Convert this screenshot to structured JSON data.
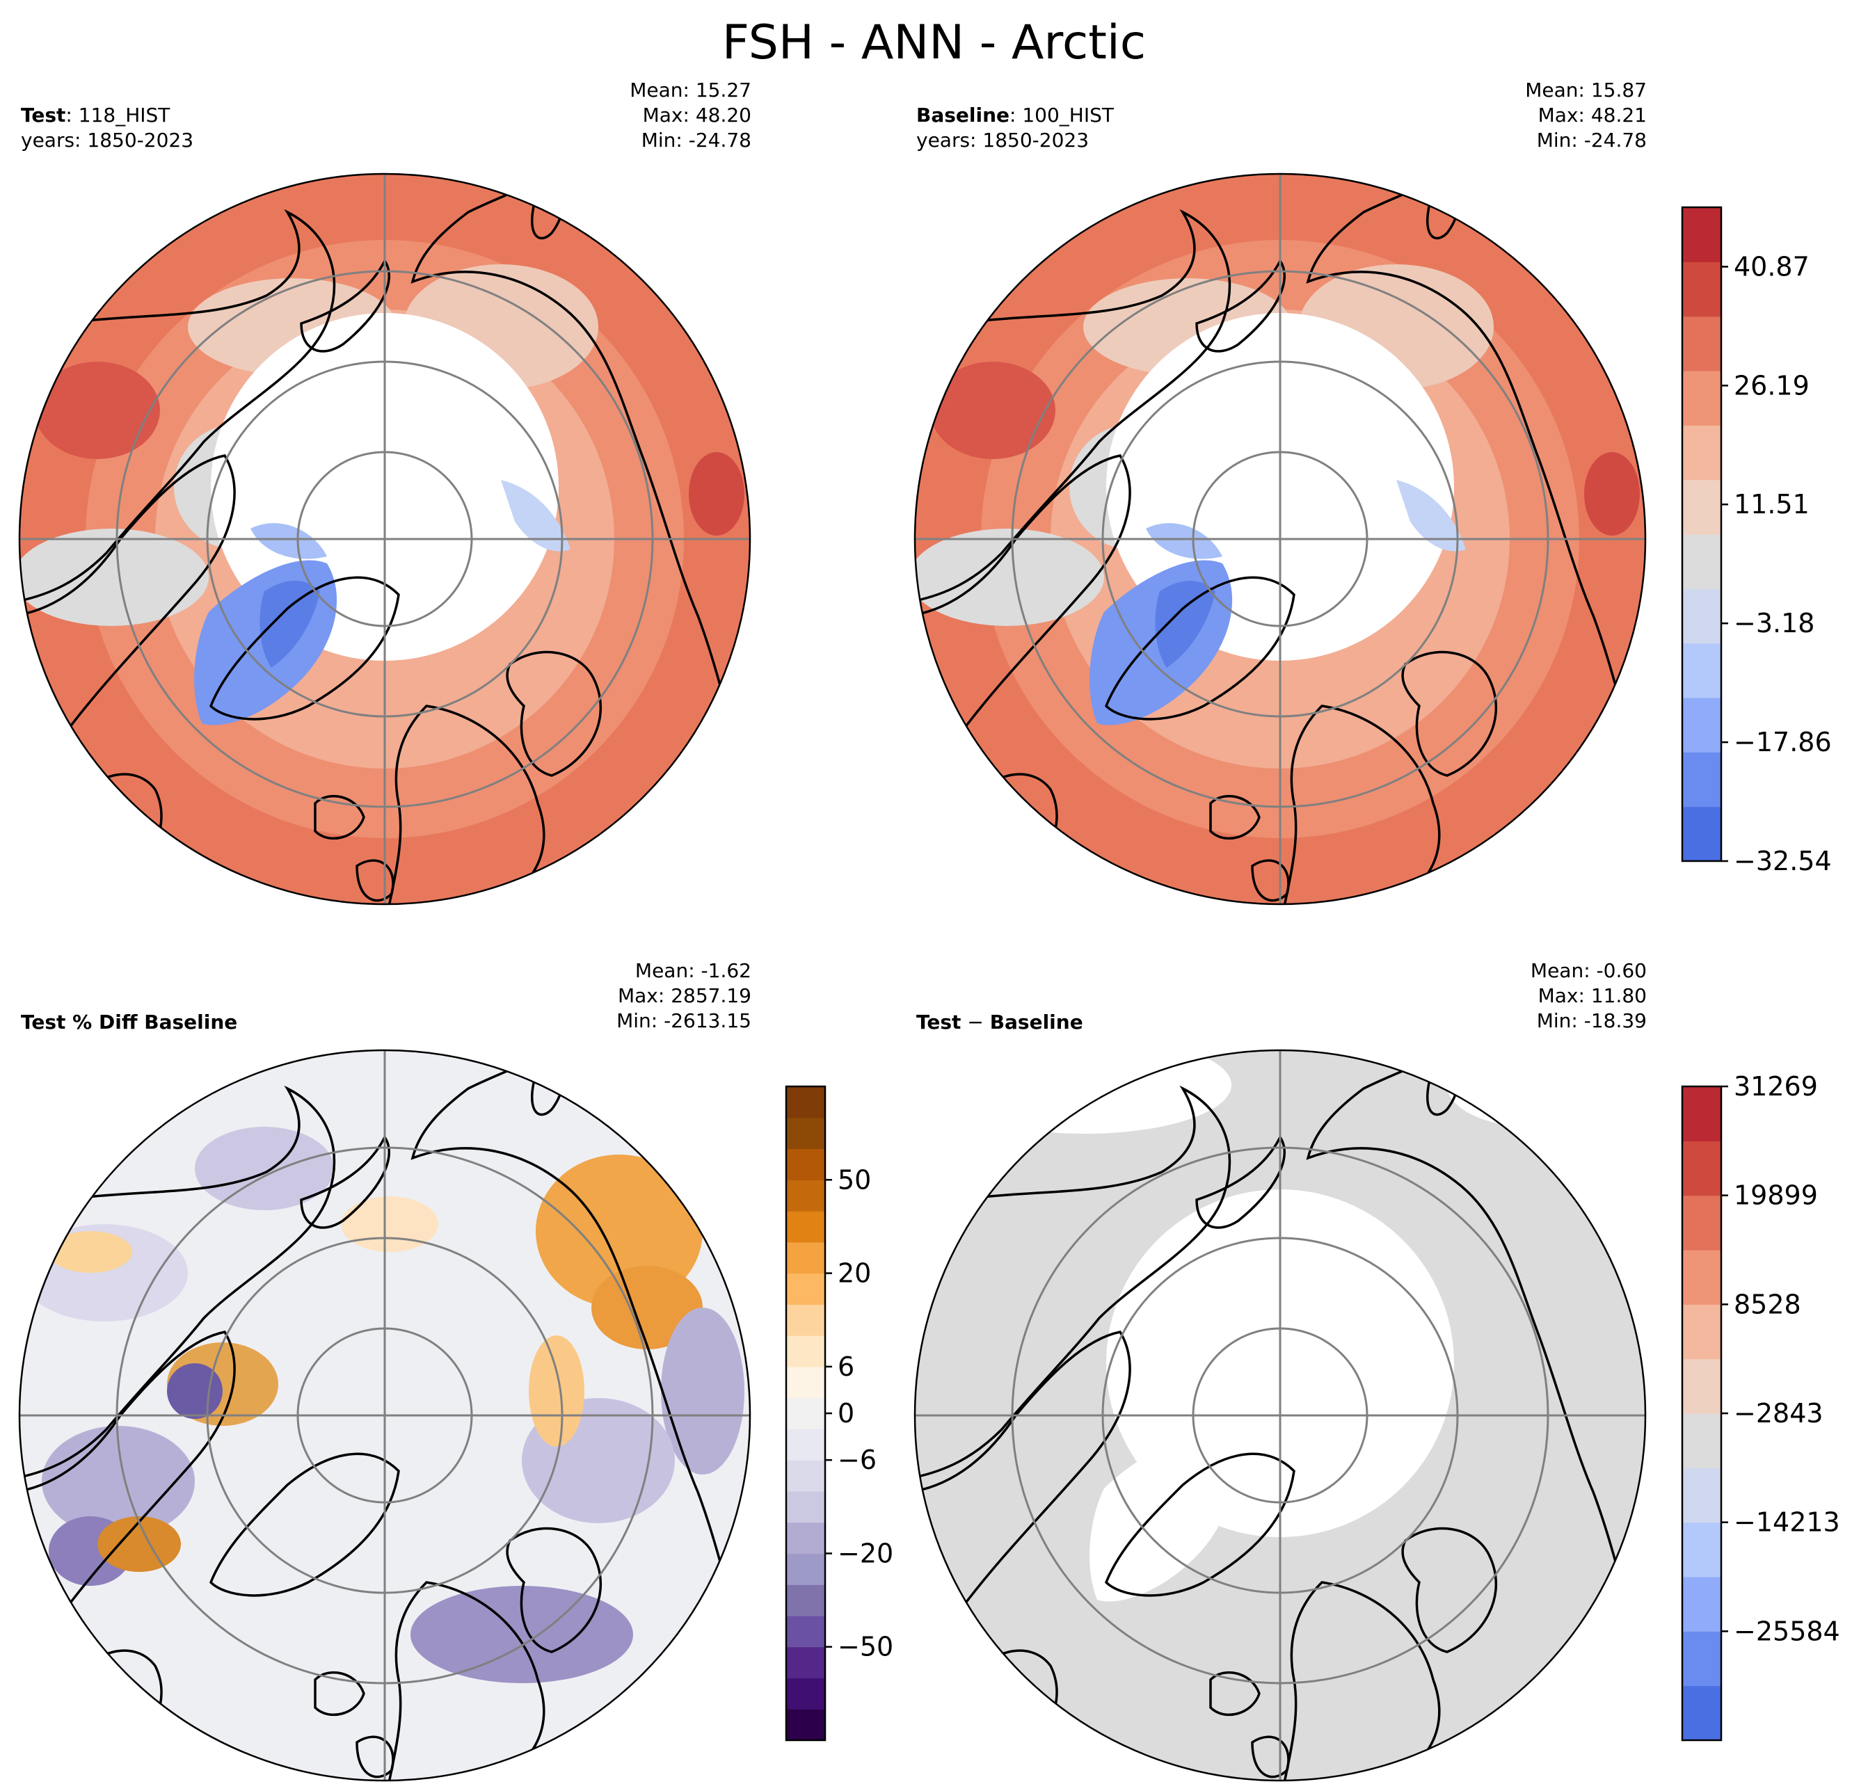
{
  "figure_title": "FSH - ANN - Arctic",
  "panels": {
    "test": {
      "label_bold": "Test",
      "label_rest": ": 118_HIST",
      "years": "years: 1850-2023",
      "mean": "Mean: 15.27",
      "max": "Max: 48.20",
      "min": "Min: -24.78"
    },
    "baseline": {
      "label_bold": "Baseline",
      "label_rest": ": 100_HIST",
      "years": "years: 1850-2023",
      "mean": "Mean: 15.87",
      "max": "Max: 48.21",
      "min": "Min: -24.78"
    },
    "pctdiff": {
      "label_bold": "Test % Diff Baseline",
      "mean": "Mean: -1.62",
      "max": "Max: 2857.19",
      "min": "Min: -2613.15"
    },
    "diff": {
      "label_bold": "Test",
      "label_minus": " − ",
      "label_bold2": "Baseline",
      "mean": "Mean: -0.60",
      "max": "Max: 11.80",
      "min": "Min: -18.39"
    }
  },
  "chart_data": [
    {
      "type": "heatmap",
      "name": "Test",
      "projection": "north-polar-stereographic",
      "colorbar_ticks": [
        "40.87",
        "26.19",
        "11.51",
        "−3.18",
        "−17.86",
        "−32.54"
      ],
      "colorbar_levels": [
        -32.54,
        -25.2,
        -17.86,
        -10.52,
        -3.18,
        4.17,
        11.51,
        18.85,
        26.19,
        33.53,
        40.87,
        48.21
      ],
      "colorbar_colors": [
        "#4a6fe3",
        "#6a8bef",
        "#8fabf9",
        "#b3c8fb",
        "#cfd8ee",
        "#dcdcdc",
        "#efd1c2",
        "#f4b89e",
        "#ef9577",
        "#e27259",
        "#cf4a3e",
        "#bb2a33"
      ]
    },
    {
      "type": "heatmap",
      "name": "Baseline",
      "projection": "north-polar-stereographic",
      "colorbar_ticks": [
        "40.87",
        "26.19",
        "11.51",
        "−3.18",
        "−17.86",
        "−32.54"
      ]
    },
    {
      "type": "heatmap",
      "name": "Test % Diff Baseline",
      "projection": "north-polar-stereographic",
      "colorbar_ticks": [
        "50",
        "20",
        "6",
        "0",
        "−6",
        "−20",
        "−50"
      ],
      "colorbar_colors": [
        "#2d004b",
        "#3f0f72",
        "#542788",
        "#6a51a3",
        "#8073ac",
        "#9e9ac8",
        "#b2abd2",
        "#cbc9e2",
        "#dadaeb",
        "#e7e8f1",
        "#f1f1f1",
        "#fdf4e6",
        "#fee7c4",
        "#fdd49e",
        "#fdb863",
        "#f4a340",
        "#e08214",
        "#c46a0d",
        "#b35806",
        "#8c4a06",
        "#7f3b08"
      ]
    },
    {
      "type": "heatmap",
      "name": "Test − Baseline",
      "projection": "north-polar-stereographic",
      "colorbar_ticks": [
        "31269",
        "19899",
        "8528",
        "−2843",
        "−14213",
        "−25584"
      ]
    }
  ]
}
